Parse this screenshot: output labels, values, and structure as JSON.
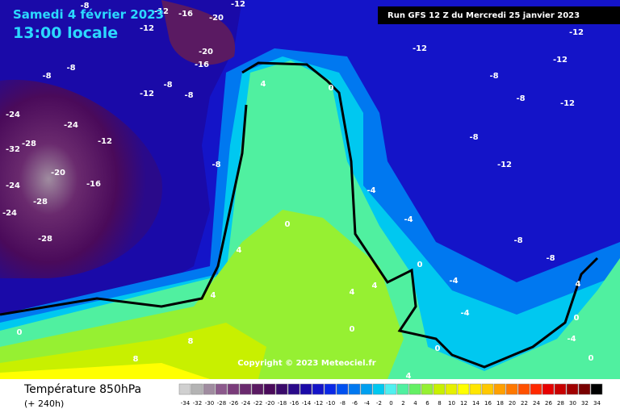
{
  "header": {
    "date": "Samedi 4 février 2023",
    "time": "13:00 locale",
    "run": "Run GFS 12 Z du Mercredi 25 janvier 2023"
  },
  "copyright": "Copyright © 2023 Meteociel.fr",
  "footer": {
    "title": "Température 850hPa",
    "lead": "(+ 240h)"
  },
  "scale": {
    "values": [
      -34,
      -32,
      -30,
      -28,
      -26,
      -24,
      -22,
      -20,
      -18,
      -16,
      -14,
      -12,
      -10,
      -8,
      -6,
      -4,
      -2,
      0,
      2,
      4,
      6,
      8,
      10,
      12,
      14,
      16,
      18,
      20,
      22,
      24,
      26,
      28,
      30,
      32,
      34
    ],
    "colors": [
      "#d0d0d0",
      "#b4b4b4",
      "#a08ca0",
      "#8c5a8c",
      "#7a3c7a",
      "#6a2a6e",
      "#5a1a62",
      "#4a0a5a",
      "#3a0a6a",
      "#2a0a8a",
      "#1a0aa8",
      "#1414c8",
      "#0a28e6",
      "#0050f0",
      "#0078f0",
      "#00a0f0",
      "#00c8f0",
      "#50f0f0",
      "#50f0a0",
      "#64f064",
      "#96f032",
      "#c8f000",
      "#e6f000",
      "#ffff00",
      "#ffe600",
      "#ffc800",
      "#ffa000",
      "#ff7800",
      "#ff5000",
      "#ff2800",
      "#e60000",
      "#c80000",
      "#a00000",
      "#780000",
      "#000000"
    ]
  },
  "map": {
    "labels": [
      "-12",
      "-16",
      "-20",
      "-12",
      "-8",
      "-12",
      "-16",
      "-20",
      "-8",
      "-8",
      "-12",
      "-8",
      "-8",
      "-24",
      "-24",
      "-32",
      "-28",
      "-20",
      "-16",
      "-12",
      "-24",
      "-28",
      "-24",
      "-28",
      "-8",
      "-12",
      "-12",
      "-12",
      "-8",
      "-8",
      "-12",
      "-8",
      "-12",
      "-8",
      "-8",
      "4",
      "0",
      "0",
      "4",
      "4",
      "0",
      "8",
      "8",
      "4",
      "4",
      "0",
      "-4",
      "-4",
      "0",
      "-4",
      "-4",
      "0",
      "4",
      "0",
      "4",
      "-4",
      "0"
    ]
  }
}
